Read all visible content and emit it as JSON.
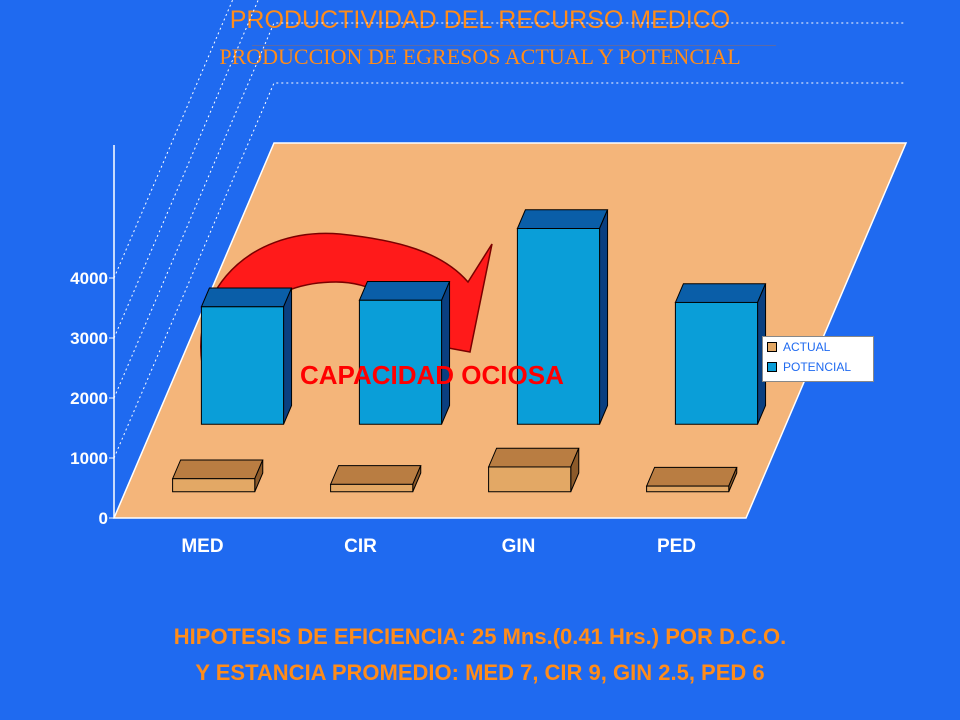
{
  "title": "PRODUCTIVIDAD DEL RECURSO MEDICO",
  "subtitle": "PRODUCCION DE EGRESOS ACTUAL Y POTENCIAL",
  "annotation": "CAPACIDAD OCIOSA",
  "footer": {
    "line1": "HIPOTESIS DE EFICIENCIA: 25 Mns.(0.41 Hrs.) POR D.C.O.",
    "line2": "Y ESTANCIA PROMEDIO: MED 7, CIR 9, GIN 2.5, PED 6"
  },
  "colors": {
    "background": "#1f6af0",
    "floor": "#f4b57a",
    "actual_front": "#e3a865",
    "actual_top": "#b97d42",
    "actual_side": "#8c5a2a",
    "potencial_front": "#0a9ed8",
    "potencial_top": "#0a5ea8",
    "potencial_side": "#0a3f80",
    "text_orange": "#ff8c1a",
    "annotation_red": "#ff0000"
  },
  "chart_data": {
    "type": "bar",
    "categories": [
      "MED",
      "CIR",
      "GIN",
      "PED"
    ],
    "series": [
      {
        "name": "ACTUAL",
        "values": [
          300,
          170,
          570,
          130
        ]
      },
      {
        "name": "POTENCIAL",
        "values": [
          2700,
          2850,
          4500,
          2800
        ]
      }
    ],
    "ylim": [
      0,
      4000
    ],
    "yticks": [
      "0",
      "1000",
      "2000",
      "3000",
      "4000"
    ],
    "grid": true,
    "legend": "right"
  }
}
